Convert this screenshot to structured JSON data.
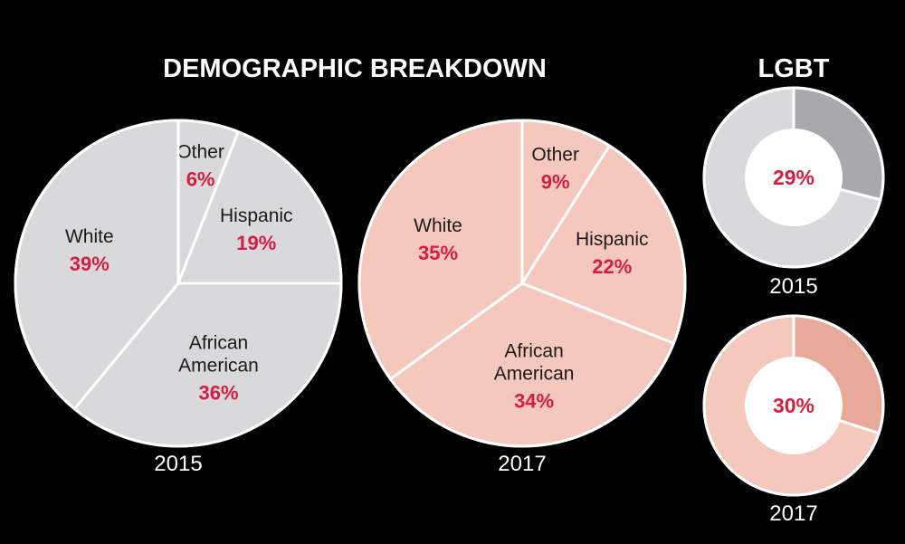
{
  "colors": {
    "background": "#000000",
    "pie_2015": "#d9d9db",
    "pie_2017": "#f5c8bd",
    "donut_2015_highlight": "#a9a9ad",
    "donut_2017_highlight": "#e6a99a",
    "divider": "#ffffff",
    "value_text": "#d61d3f",
    "label_text": "#1a1a1a"
  },
  "headings": {
    "demographic": "DEMOGRAPHIC BREAKDOWN",
    "lgbt": "LGBT"
  },
  "chart_data": [
    {
      "type": "pie",
      "year_label": "2015",
      "slices": [
        {
          "label": [
            "Other"
          ],
          "value": 6,
          "display": "6%"
        },
        {
          "label": [
            "Hispanic"
          ],
          "value": 19,
          "display": "19%"
        },
        {
          "label": [
            "African",
            "American"
          ],
          "value": 36,
          "display": "36%"
        },
        {
          "label": [
            "White"
          ],
          "value": 39,
          "display": "39%"
        }
      ]
    },
    {
      "type": "pie",
      "year_label": "2017",
      "slices": [
        {
          "label": [
            "Other"
          ],
          "value": 9,
          "display": "9%"
        },
        {
          "label": [
            "Hispanic"
          ],
          "value": 22,
          "display": "22%"
        },
        {
          "label": [
            "African",
            "American"
          ],
          "value": 34,
          "display": "34%"
        },
        {
          "label": [
            "White"
          ],
          "value": 35,
          "display": "35%"
        }
      ]
    },
    {
      "type": "pie",
      "variant": "donut",
      "year_label": "2015",
      "value": 29,
      "display": "29%"
    },
    {
      "type": "pie",
      "variant": "donut",
      "year_label": "2017",
      "value": 30,
      "display": "30%"
    }
  ]
}
